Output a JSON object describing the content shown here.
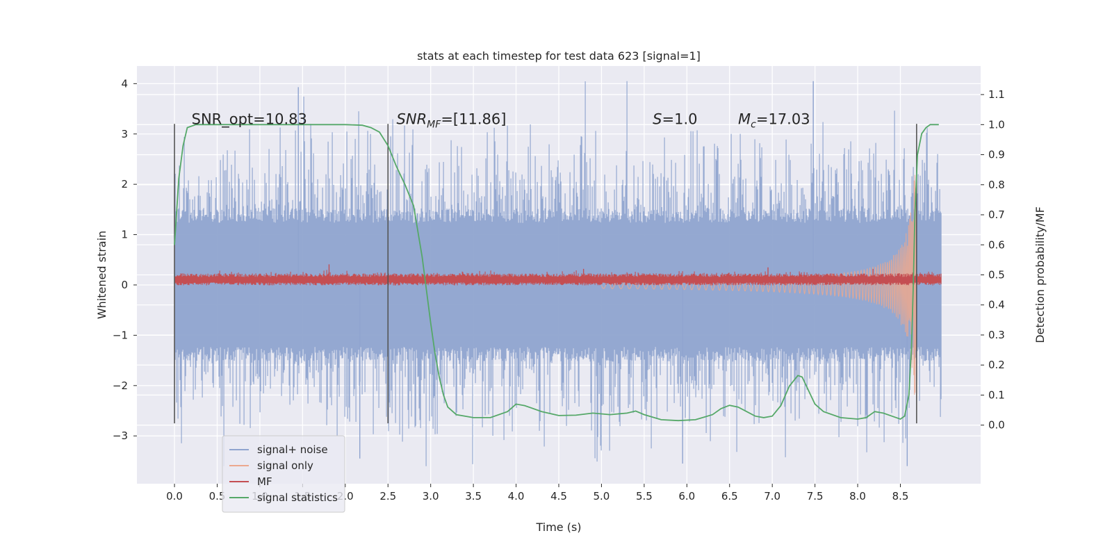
{
  "chart_data": {
    "type": "line",
    "title": "stats at each timestep for test data 623 [signal=1]",
    "xlabel": "Time (s)",
    "ylabel_left": "Whitened strain",
    "ylabel_right": "Detection probability/MF",
    "xlim": [
      -0.44,
      9.44
    ],
    "ylim_left": [
      -3.95,
      4.35
    ],
    "ylim_right": [
      -0.195,
      1.195
    ],
    "x_ticks": [
      "0.0",
      "0.5",
      "1.0",
      "1.5",
      "2.0",
      "2.5",
      "3.0",
      "3.5",
      "4.0",
      "4.5",
      "5.0",
      "5.5",
      "6.0",
      "6.5",
      "7.0",
      "7.5",
      "8.0",
      "8.5"
    ],
    "y_ticks_left": [
      "−3",
      "−2",
      "−1",
      "0",
      "1",
      "2",
      "3",
      "4"
    ],
    "y_ticks_right": [
      "0.0",
      "0.1",
      "0.2",
      "0.3",
      "0.4",
      "0.5",
      "0.6",
      "0.7",
      "0.8",
      "0.9",
      "1.0",
      "1.1"
    ],
    "grid": true,
    "legend_position": "lower-left",
    "annotations": [
      {
        "text": "SNR_opt=10.83",
        "x": 0.2,
        "y": 3.2
      },
      {
        "text": "SNRMF=[11.86]",
        "x": 2.6,
        "y": 3.2,
        "math": "SNR",
        "sub": "MF",
        "rest": "=[11.86]"
      },
      {
        "text": "S=1.0",
        "x": 5.6,
        "y": 3.2,
        "math": "S",
        "rest": "=1.0"
      },
      {
        "text": "Mc=17.03",
        "x": 6.6,
        "y": 3.2,
        "math": "M",
        "sub": "c",
        "rest": "=17.03"
      }
    ],
    "vertical_lines": [
      {
        "x": 0.0,
        "y_range": [
          -2.75,
          3.2
        ]
      },
      {
        "x": 2.5,
        "y_range": [
          -2.75,
          3.2
        ]
      },
      {
        "x": 8.69,
        "y_range": [
          -2.75,
          3.2
        ]
      }
    ],
    "series": [
      {
        "name": "signal+ noise",
        "color": "#8fa4cf",
        "axis": "left",
        "x_range": [
          0.0,
          8.98
        ],
        "typical_amplitude": [
          -1.45,
          1.45
        ],
        "spike_max": 4.05,
        "spike_min": -3.6
      },
      {
        "name": "signal only",
        "color": "#eca88e",
        "axis": "left",
        "x_range": [
          5.0,
          8.69
        ],
        "envelope_start": 0.02,
        "peak_amplitude": 2.2
      },
      {
        "name": "MF",
        "color": "#c44e52",
        "axis": "right",
        "x_range": [
          0.0,
          8.98
        ],
        "baseline": 0.48,
        "band": [
          0.465,
          0.505
        ]
      },
      {
        "name": "signal statistics",
        "color": "#55a868",
        "axis": "right",
        "x": [
          0.0,
          0.05,
          0.1,
          0.15,
          0.25,
          0.5,
          1.0,
          1.5,
          2.0,
          2.2,
          2.3,
          2.4,
          2.5,
          2.6,
          2.7,
          2.8,
          2.9,
          3.0,
          3.05,
          3.1,
          3.15,
          3.2,
          3.3,
          3.5,
          3.7,
          3.9,
          4.0,
          4.1,
          4.3,
          4.5,
          4.7,
          4.9,
          5.1,
          5.3,
          5.4,
          5.5,
          5.7,
          5.9,
          6.1,
          6.3,
          6.4,
          6.5,
          6.6,
          6.7,
          6.8,
          6.9,
          7.0,
          7.1,
          7.2,
          7.3,
          7.35,
          7.4,
          7.5,
          7.6,
          7.8,
          8.0,
          8.1,
          8.2,
          8.3,
          8.4,
          8.5,
          8.55,
          8.6,
          8.63,
          8.65,
          8.67,
          8.7,
          8.75,
          8.8,
          8.85,
          8.9,
          8.95
        ],
        "y": [
          0.6,
          0.82,
          0.93,
          0.99,
          1.0,
          1.0,
          1.0,
          1.0,
          1.0,
          0.998,
          0.99,
          0.975,
          0.93,
          0.86,
          0.8,
          0.73,
          0.56,
          0.34,
          0.24,
          0.16,
          0.1,
          0.06,
          0.035,
          0.025,
          0.025,
          0.045,
          0.07,
          0.065,
          0.045,
          0.032,
          0.033,
          0.04,
          0.035,
          0.04,
          0.047,
          0.035,
          0.018,
          0.015,
          0.018,
          0.035,
          0.055,
          0.066,
          0.06,
          0.045,
          0.03,
          0.025,
          0.03,
          0.065,
          0.13,
          0.165,
          0.16,
          0.13,
          0.07,
          0.045,
          0.025,
          0.02,
          0.025,
          0.045,
          0.04,
          0.03,
          0.02,
          0.03,
          0.1,
          0.26,
          0.45,
          0.7,
          0.9,
          0.97,
          0.99,
          1.0,
          1.0,
          1.0
        ]
      }
    ]
  }
}
